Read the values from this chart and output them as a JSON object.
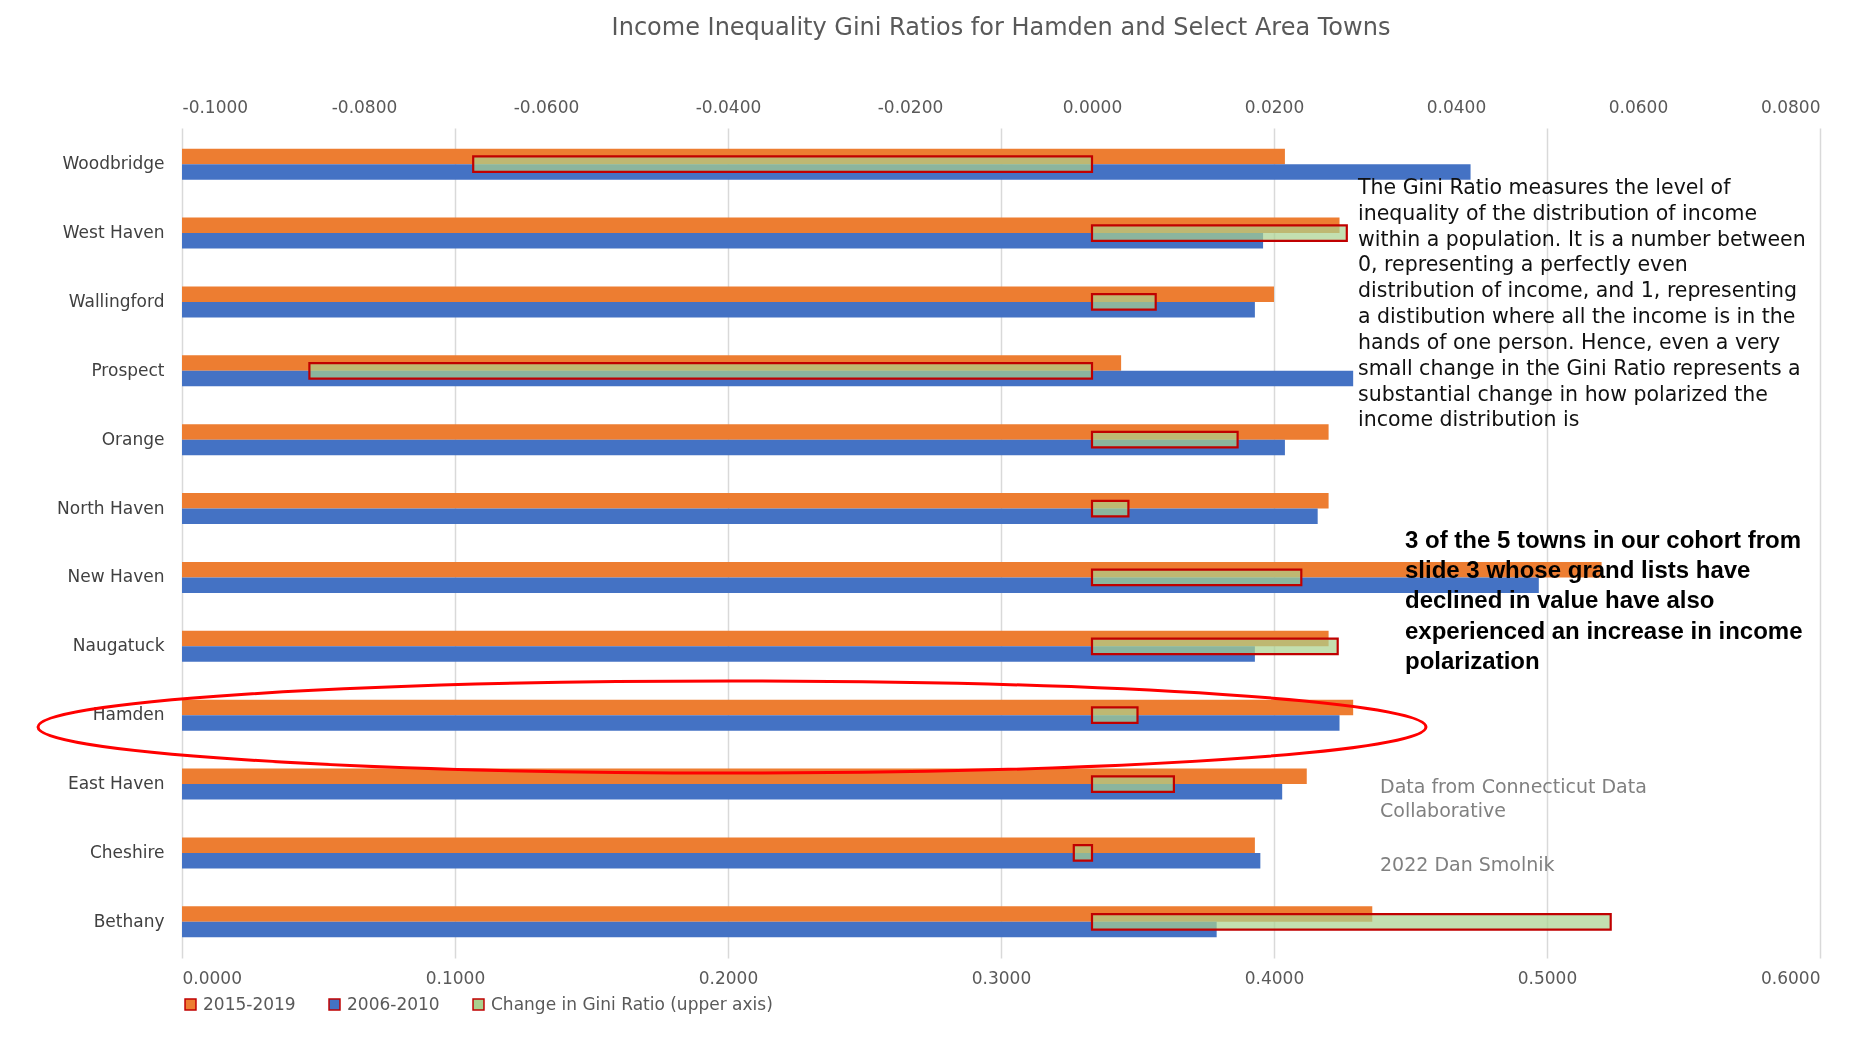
{
  "chart_data": {
    "type": "bar",
    "orientation": "horizontal",
    "title": "Income Inequality Gini Ratios for Hamden and Select Area Towns",
    "categories": [
      "Woodbridge",
      "West Haven",
      "Wallingford",
      "Prospect",
      "Orange",
      "North Haven",
      "New Haven",
      "Naugatuck",
      "Hamden",
      "East Haven",
      "Cheshire",
      "Bethany"
    ],
    "series": [
      {
        "name": "2015-2019",
        "color": "#ed7d31",
        "values": [
          0.404,
          0.424,
          0.4,
          0.344,
          0.42,
          0.42,
          0.52,
          0.42,
          0.429,
          0.412,
          0.393,
          0.436
        ]
      },
      {
        "name": "2006-2010",
        "color": "#4472c4",
        "values": [
          0.472,
          0.396,
          0.393,
          0.429,
          0.404,
          0.416,
          0.497,
          0.393,
          0.424,
          0.403,
          0.395,
          0.379
        ]
      },
      {
        "name": "Change in Gini Ratio (upper axis)",
        "color": "#a9d18e",
        "axis": "x2",
        "values": [
          -0.068,
          0.028,
          0.007,
          -0.086,
          0.016,
          0.004,
          0.023,
          0.027,
          0.005,
          0.009,
          -0.002,
          0.057
        ]
      }
    ],
    "xlim": [
      0,
      0.6
    ],
    "xticks": [
      {
        "value": 0,
        "label": "0.0000"
      },
      {
        "value": 0.1,
        "label": "0.1000"
      },
      {
        "value": 0.2,
        "label": "0.2000"
      },
      {
        "value": 0.3,
        "label": "0.3000"
      },
      {
        "value": 0.4,
        "label": "0.4000"
      },
      {
        "value": 0.5,
        "label": "0.5000"
      },
      {
        "value": 0.6,
        "label": "0.6000"
      }
    ],
    "x2lim": [
      -0.1,
      0.08
    ],
    "x2ticks": [
      {
        "value": -0.1,
        "label": "-0.1000"
      },
      {
        "value": -0.08,
        "label": "-0.0800"
      },
      {
        "value": -0.06,
        "label": "-0.0600"
      },
      {
        "value": -0.04,
        "label": "-0.0400"
      },
      {
        "value": -0.02,
        "label": "-0.0200"
      },
      {
        "value": 0,
        "label": "0.0000"
      },
      {
        "value": 0.02,
        "label": "0.0200"
      },
      {
        "value": 0.04,
        "label": "0.0400"
      },
      {
        "value": 0.06,
        "label": "0.0600"
      },
      {
        "value": 0.08,
        "label": "0.0800"
      }
    ],
    "grid": "x",
    "legend": "bottom",
    "annotations": [
      "The Gini Ratio measures the level of inequality of the distribution of income within a population.  It is a number between 0, representing a perfectly even distribution of income, and 1, representing a distibution where all the income is in the hands of one person. Hence, even a very small change in the Gini Ratio represents a substantial change in how polarized the income distribution is",
      "3 of the 5 towns in our cohort from slide 3 whose grand lists have declined in value have also experienced an increase in income polarization",
      "Data from Connecticut Data Collaborative",
      "2022 Dan Smolnik"
    ]
  }
}
